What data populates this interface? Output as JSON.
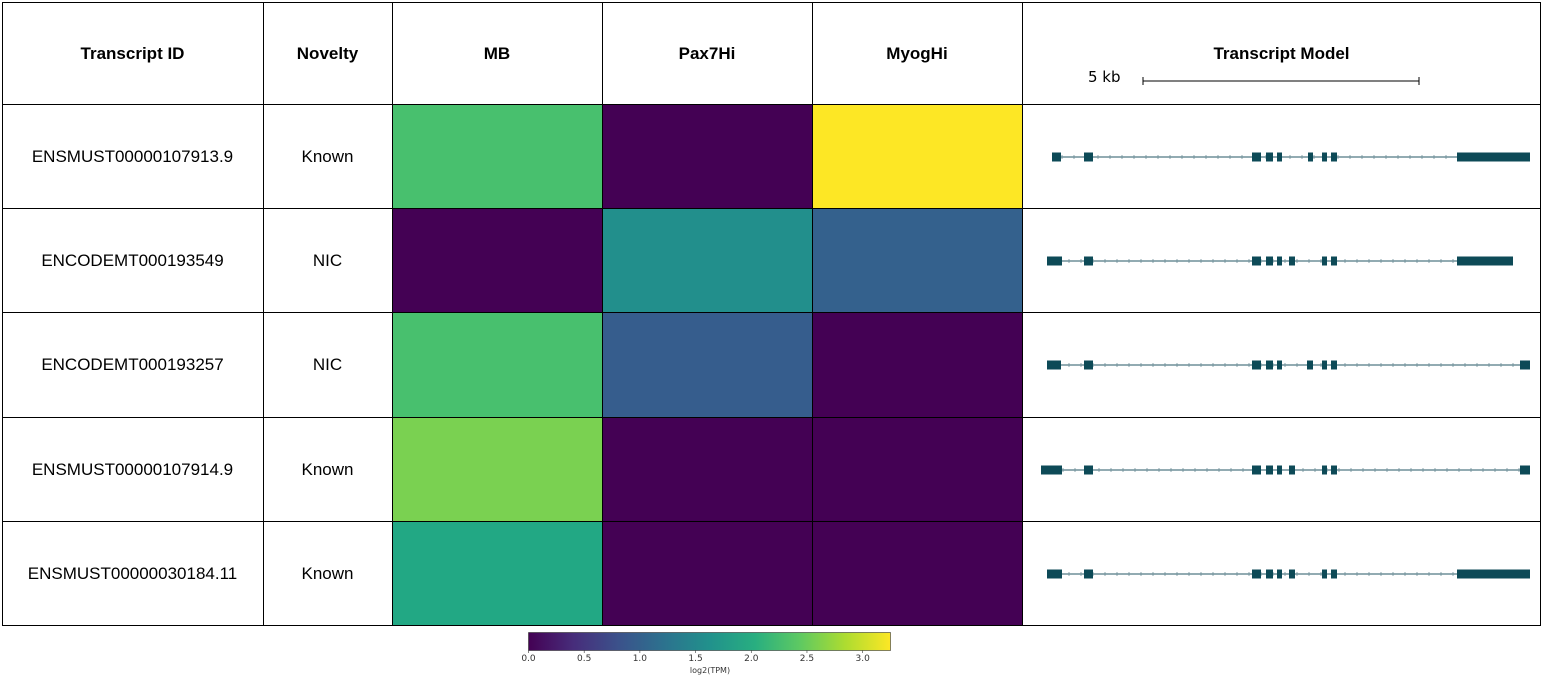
{
  "table": {
    "headers": {
      "transcript_id": "Transcript ID",
      "novelty": "Novelty",
      "mb": "MB",
      "pax7": "Pax7Hi",
      "myog": "MyogHi",
      "model": "Transcript Model"
    },
    "scale_label": "5 kb",
    "rows": [
      {
        "id": "ENSMUST00000107913.9",
        "novelty": "Known"
      },
      {
        "id": "ENCODEMT000193549",
        "novelty": "NIC"
      },
      {
        "id": "ENCODEMT000193257",
        "novelty": "NIC"
      },
      {
        "id": "ENSMUST00000107914.9",
        "novelty": "Known"
      },
      {
        "id": "ENSMUST00000030184.11",
        "novelty": "Known"
      }
    ]
  },
  "chart_data": {
    "type": "heatmap",
    "colormap": "viridis",
    "columns": [
      "MB",
      "Pax7Hi",
      "MyogHi"
    ],
    "rows": [
      "ENSMUST00000107913.9",
      "ENCODEMT000193549",
      "ENCODEMT000193257",
      "ENSMUST00000107914.9",
      "ENSMUST00000030184.11"
    ],
    "values": [
      [
        2.3,
        0.0,
        3.25
      ],
      [
        0.0,
        1.6,
        1.0
      ],
      [
        2.3,
        0.95,
        0.0
      ],
      [
        2.6,
        0.0,
        0.0
      ],
      [
        1.95,
        0.0,
        0.0
      ]
    ],
    "colorbar": {
      "range": [
        0.0,
        3.25
      ],
      "ticks": [
        "0.0",
        "0.5",
        "1.0",
        "1.5",
        "2.0",
        "2.5",
        "3.0"
      ],
      "label": "log2(TPM)"
    }
  },
  "transcript_models": {
    "color": "#0d4a57",
    "line_color": "#6e8f99"
  }
}
